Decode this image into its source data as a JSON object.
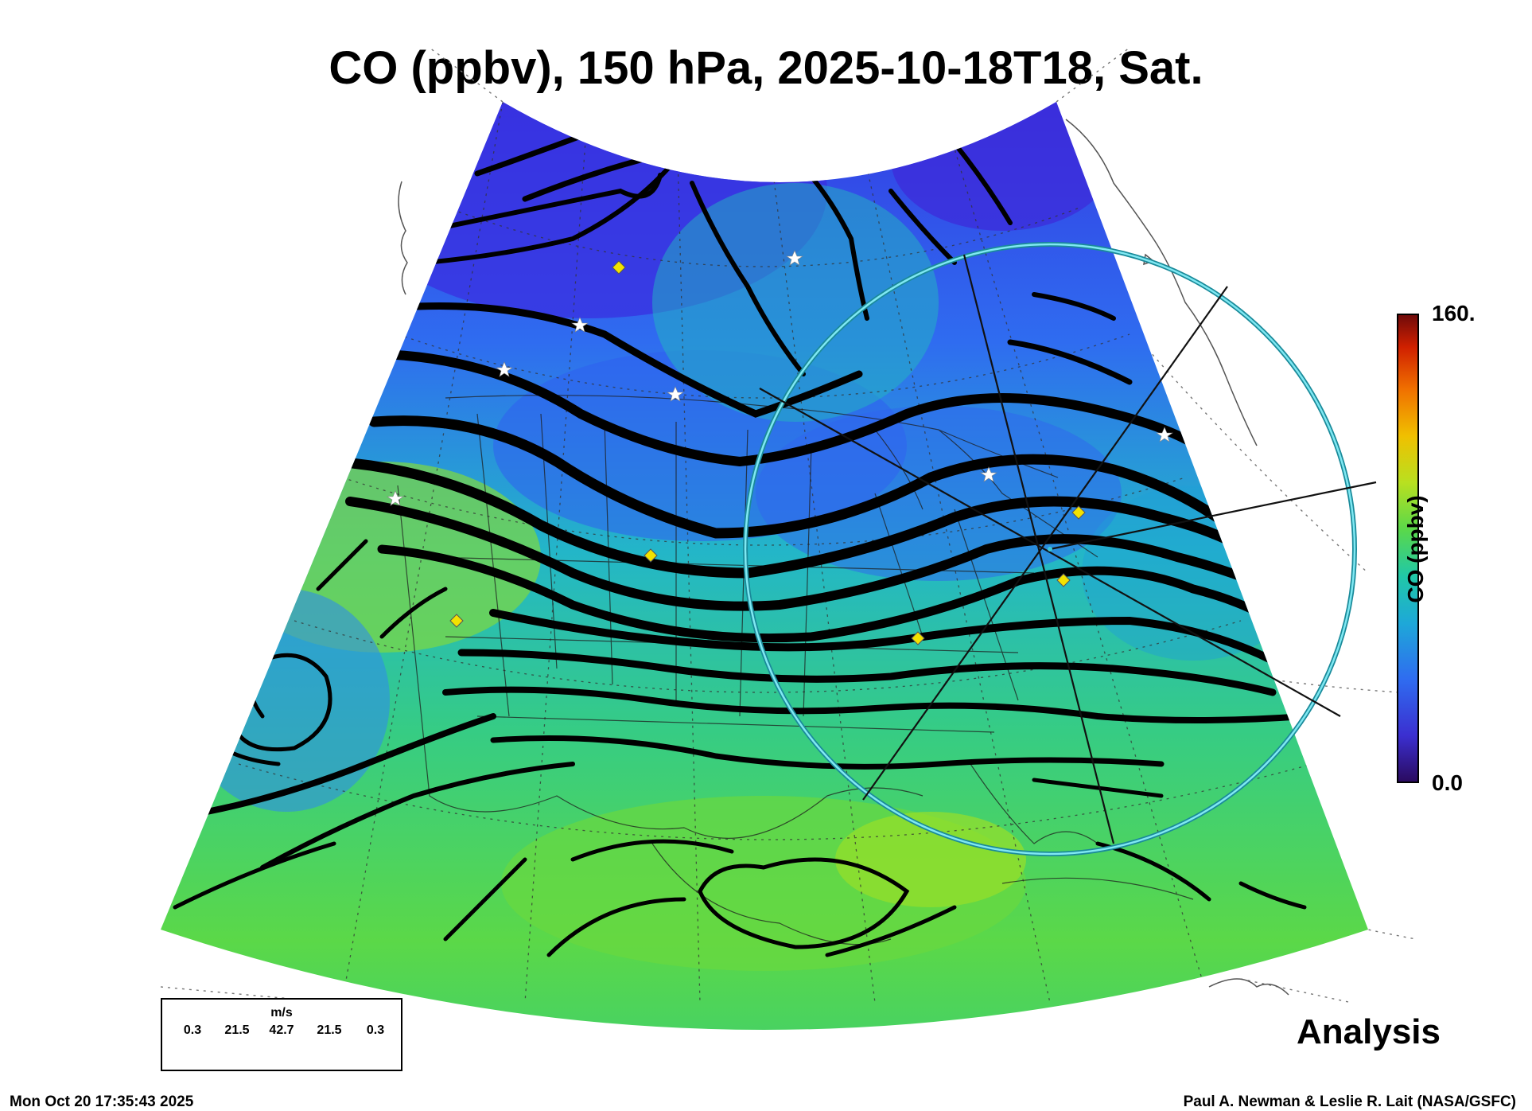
{
  "title": "CO (ppbv), 150 hPa, 2025-10-18T18, Sat.",
  "colorbar": {
    "max_label": "160.",
    "min_label": "0.0",
    "label": "CO (ppbv)",
    "range": [
      0,
      160
    ],
    "stops": [
      "#2a0a5e",
      "#3b2fd0",
      "#2f6cf0",
      "#1ea8d8",
      "#20c8a8",
      "#5ad84a",
      "#b8e020",
      "#f0c000",
      "#f07000",
      "#d02000",
      "#6e0a0a"
    ]
  },
  "wind_legend": {
    "units": "m/s",
    "values": [
      "0.3",
      "21.5",
      "42.7",
      "21.5",
      "0.3"
    ]
  },
  "analysis_label": "Analysis",
  "timestamp": "Mon Oct 20 17:35:43 2025",
  "credit": "Paul A. Newman & Leslie R. Lait (NASA/GSFC)",
  "map": {
    "projection": "conic sector, North America",
    "field": "CO mixing ratio (mostly 40-90 ppbv: blue in north, green/yellow-green in south)",
    "overlays": [
      "streamlines (black, width by wind speed)",
      "state/country boundaries",
      "lat/lon dotted grid",
      "white star stations",
      "yellow diamond sites",
      "cyan range circle with crossing lines"
    ],
    "colors": {
      "low_co": "#3a3ae0",
      "mid_co": "#1ea8d8",
      "high_co": "#7ed93a",
      "circle": "#3cc8d8",
      "diamond": "#f2e200"
    }
  }
}
